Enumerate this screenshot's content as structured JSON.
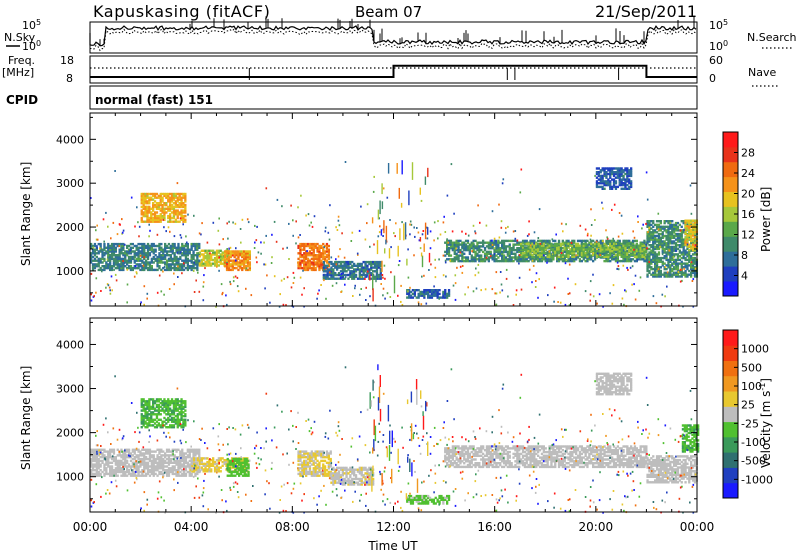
{
  "header": {
    "station": "Kapuskasing (fitACF)",
    "beam": "Beam 07",
    "date": "21/Sep/2011"
  },
  "sky_panel": {
    "left_label": "N.Sky",
    "right_label": "N.Search",
    "left_ticks": [
      "10^5",
      "10^0"
    ],
    "right_ticks": [
      "10^5",
      "10^0"
    ]
  },
  "freq_panel": {
    "left_label_line1": "Freq.",
    "left_label_line2": "[MHz]",
    "right_label": "Nave",
    "left_ticks": [
      "18",
      "8"
    ],
    "right_ticks": [
      "60",
      "0"
    ],
    "freq_steps": [
      {
        "from": 0,
        "to": 12,
        "value": 10
      },
      {
        "from": 12,
        "to": 22,
        "value": 14.5
      },
      {
        "from": 22,
        "to": 24,
        "value": 10
      }
    ]
  },
  "cpid": {
    "label": "CPID",
    "mode": "normal (fast) 151"
  },
  "x_axis": {
    "label": "Time UT",
    "range_hours": [
      0,
      24
    ],
    "tick_labels": [
      "00:00",
      "04:00",
      "08:00",
      "12:00",
      "16:00",
      "20:00",
      "00:00"
    ]
  },
  "y_axis": {
    "label": "Slant Range [km]",
    "range": [
      200,
      4600
    ],
    "tick_labels": [
      "1000",
      "2000",
      "3000",
      "4000"
    ]
  },
  "colors": {
    "power": [
      "#1a1aff",
      "#1f3fbf",
      "#2e6e9a",
      "#3f8a6a",
      "#5aa84a",
      "#a6c83a",
      "#e7c21f",
      "#f5921a",
      "#f06a10",
      "#e8321a",
      "#ff1a1a"
    ],
    "velocity": [
      "#1a1aff",
      "#2040c0",
      "#2f7070",
      "#3a9a5a",
      "#50c030",
      "#bdbdbd",
      "#e8c830",
      "#f09820",
      "#f07010",
      "#f03a10",
      "#ff1a1a"
    ]
  },
  "chart_data": [
    {
      "type": "heatmap",
      "panel": "power",
      "xlabel": "Time UT",
      "ylabel": "Slant Range [km]",
      "xlim": [
        0,
        24
      ],
      "ylim": [
        200,
        4600
      ],
      "colorbar": {
        "label": "Power [dB]",
        "ticks": [
          "28",
          "24",
          "20",
          "16",
          "12",
          "8",
          "4"
        ],
        "range": [
          0,
          32
        ]
      },
      "regions": [
        {
          "t0": 2.0,
          "t1": 3.8,
          "r0": 2150,
          "r1": 2800,
          "v": 20
        },
        {
          "t0": 0.0,
          "t1": 4.3,
          "r0": 1050,
          "r1": 1650,
          "v": 9
        },
        {
          "t0": 4.3,
          "t1": 5.5,
          "r0": 1150,
          "r1": 1500,
          "v": 17
        },
        {
          "t0": 5.3,
          "t1": 6.3,
          "r0": 1050,
          "r1": 1500,
          "v": 22
        },
        {
          "t0": 8.2,
          "t1": 9.4,
          "r0": 1050,
          "r1": 1650,
          "v": 24
        },
        {
          "t0": 9.2,
          "t1": 11.5,
          "r0": 850,
          "r1": 1250,
          "v": 8
        },
        {
          "t0": 12.5,
          "t1": 14.2,
          "r0": 420,
          "r1": 600,
          "v": 7
        },
        {
          "t0": 14.0,
          "t1": 22.0,
          "r0": 1250,
          "r1": 1750,
          "v": 10
        },
        {
          "t0": 17.0,
          "t1": 22.0,
          "r0": 1350,
          "r1": 1650,
          "v": 14
        },
        {
          "t0": 20.0,
          "t1": 21.4,
          "r0": 2900,
          "r1": 3400,
          "v": 6
        },
        {
          "t0": 22.0,
          "t1": 24.0,
          "r0": 900,
          "r1": 2200,
          "v": 10
        },
        {
          "t0": 23.5,
          "t1": 24.0,
          "r0": 1500,
          "r1": 2200,
          "v": 18
        }
      ]
    },
    {
      "type": "heatmap",
      "panel": "velocity",
      "xlabel": "Time UT",
      "ylabel": "Slant Range [km]",
      "xlim": [
        0,
        24
      ],
      "ylim": [
        200,
        4600
      ],
      "colorbar": {
        "label": "Velocity [m s^-1]",
        "ticks": [
          "1000",
          "500",
          "100",
          "25",
          "-25",
          "-100",
          "-500",
          "-1000"
        ],
        "range": [
          -1200,
          1200
        ]
      },
      "regions": [
        {
          "t0": 0.0,
          "t1": 4.3,
          "r0": 1050,
          "r1": 1650,
          "v": 0
        },
        {
          "t0": 2.0,
          "t1": 3.8,
          "r0": 2150,
          "r1": 2800,
          "v": -300
        },
        {
          "t0": 4.0,
          "t1": 6.2,
          "r0": 1150,
          "r1": 1450,
          "v": 150
        },
        {
          "t0": 5.4,
          "t1": 6.3,
          "r0": 1050,
          "r1": 1450,
          "v": -200
        },
        {
          "t0": 8.2,
          "t1": 9.5,
          "r0": 1050,
          "r1": 1600,
          "v": 120
        },
        {
          "t0": 9.5,
          "t1": 11.2,
          "r0": 850,
          "r1": 1250,
          "v": 60
        },
        {
          "t0": 12.5,
          "t1": 14.2,
          "r0": 420,
          "r1": 600,
          "v": -150
        },
        {
          "t0": 14.0,
          "t1": 22.0,
          "r0": 1250,
          "r1": 1750,
          "v": 0
        },
        {
          "t0": 20.0,
          "t1": 21.4,
          "r0": 2900,
          "r1": 3400,
          "v": 0
        },
        {
          "t0": 22.0,
          "t1": 24.0,
          "r0": 900,
          "r1": 1500,
          "v": 0
        },
        {
          "t0": 23.4,
          "t1": 24.0,
          "r0": 1600,
          "r1": 2200,
          "v": -300
        }
      ]
    }
  ]
}
